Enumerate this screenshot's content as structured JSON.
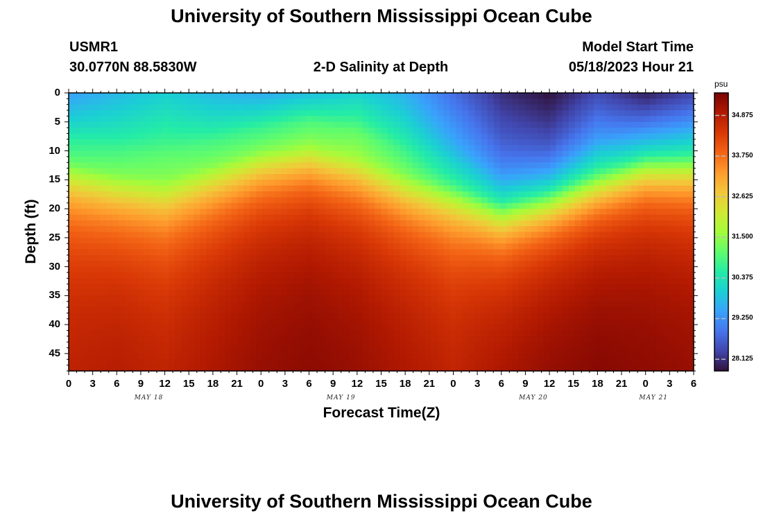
{
  "header": {
    "title": "University of Southern Mississippi Ocean Cube",
    "station_id": "USMR1",
    "station_coords": "30.0770N  88.5830W",
    "plot_title": "2-D Salinity at Depth",
    "model_start_label": "Model Start Time",
    "model_start_value": "05/18/2023 Hour 21",
    "footer_title": "University of Southern Mississippi Ocean Cube"
  },
  "chart_data": {
    "type": "heatmap",
    "title": "2-D Salinity at Depth",
    "xlabel": "Forecast Time(Z)",
    "ylabel": "Depth (ft)",
    "x_tick_labels": [
      "0",
      "3",
      "6",
      "9",
      "12",
      "15",
      "18",
      "21",
      "0",
      "3",
      "6",
      "9",
      "12",
      "15",
      "18",
      "21",
      "0",
      "3",
      "6",
      "9",
      "12",
      "15",
      "18",
      "21",
      "0",
      "3",
      "6"
    ],
    "x_day_labels": [
      {
        "label": "MAY 18",
        "hour": 10
      },
      {
        "label": "MAY 19",
        "hour": 34
      },
      {
        "label": "MAY 20",
        "hour": 58
      },
      {
        "label": "MAY 21",
        "hour": 73
      }
    ],
    "x_hours_range": [
      0,
      78
    ],
    "y_ticks": [
      0,
      5,
      10,
      15,
      20,
      25,
      30,
      35,
      40,
      45
    ],
    "ylim": [
      48,
      0
    ],
    "colorbar": {
      "unit": "psu",
      "ticks": [
        34.875,
        33.75,
        32.625,
        31.5,
        30.375,
        29.25,
        28.125
      ],
      "tick_labels": [
        "34.875",
        "33.750",
        "32.625",
        "31.500",
        "30.375",
        "29.250",
        "28.125"
      ],
      "range": [
        27.8,
        35.5
      ]
    },
    "surface_salinity_psu": {
      "hours": [
        0,
        6,
        12,
        18,
        24,
        30,
        36,
        42,
        48,
        54,
        60,
        66,
        72,
        78
      ],
      "values": [
        29.4,
        29.7,
        30.0,
        29.7,
        29.5,
        29.7,
        30.0,
        29.6,
        28.8,
        28.1,
        27.8,
        28.4,
        27.9,
        28.3
      ]
    },
    "halocline_depth_ft": {
      "hours": [
        0,
        6,
        12,
        18,
        24,
        30,
        36,
        42,
        48,
        54,
        60,
        66,
        72,
        78
      ],
      "values": [
        12,
        14,
        15,
        12.5,
        10,
        9,
        11,
        14,
        16,
        19,
        17,
        14,
        11,
        11
      ]
    },
    "bottom_salinity_psu": {
      "hours": [
        0,
        6,
        12,
        18,
        24,
        30,
        36,
        42,
        48,
        54,
        60,
        66,
        72,
        78
      ],
      "values": [
        34.9,
        35.0,
        34.9,
        35.1,
        35.3,
        35.4,
        35.3,
        35.1,
        34.9,
        35.2,
        35.4,
        35.5,
        35.4,
        35.3
      ]
    },
    "colors": {
      "scale": [
        "#30123b",
        "#4145ab",
        "#4675ed",
        "#39a2fc",
        "#1bcfd4",
        "#24eca6",
        "#61fc6c",
        "#a4fc3b",
        "#d1e834",
        "#f3c63a",
        "#fe9b2d",
        "#f36315",
        "#d93806",
        "#b11901",
        "#7a0403"
      ]
    }
  }
}
